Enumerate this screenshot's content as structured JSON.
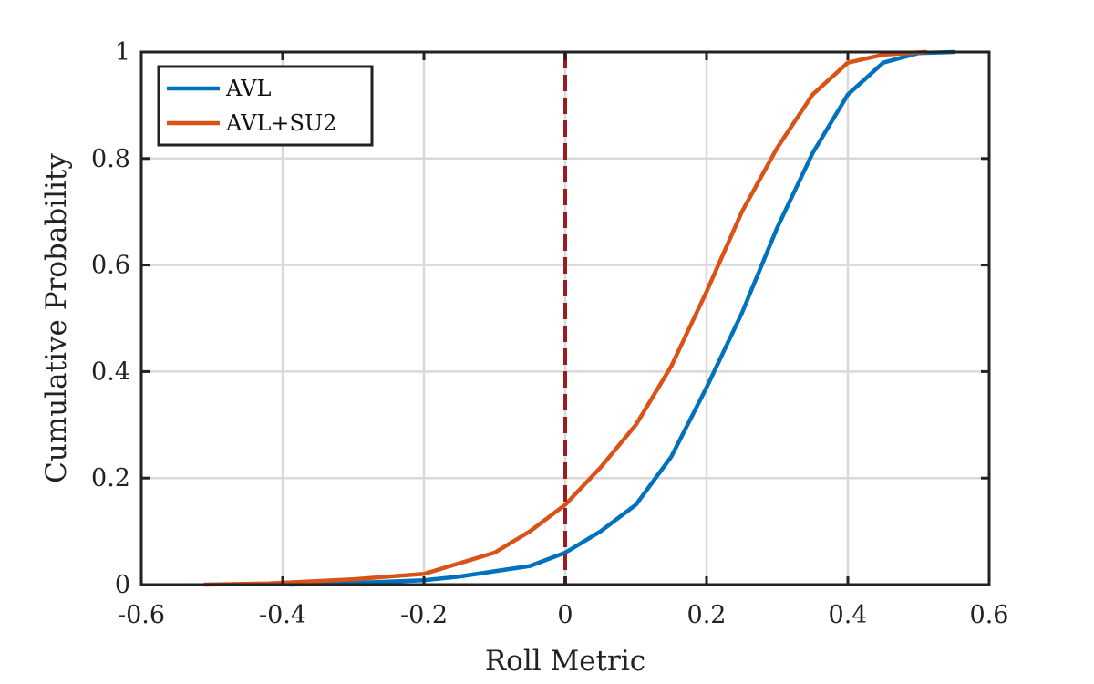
{
  "chart_data": {
    "type": "line",
    "title": "",
    "xlabel": "Roll Metric",
    "ylabel": "Cumulative Probability",
    "xlim": [
      -0.6,
      0.6
    ],
    "ylim": [
      0,
      1
    ],
    "xticks": [
      -0.6,
      -0.4,
      -0.2,
      0,
      0.2,
      0.4,
      0.6
    ],
    "xtick_labels": [
      "-0.6",
      "-0.4",
      "-0.2",
      "0",
      "0.2",
      "0.4",
      "0.6"
    ],
    "yticks": [
      0,
      0.2,
      0.4,
      0.6,
      0.8,
      1
    ],
    "ytick_labels": [
      "0",
      "0.2",
      "0.4",
      "0.6",
      "0.8",
      "1"
    ],
    "grid": true,
    "legend_position": "top-left",
    "reference_line": {
      "x": 0,
      "color": "#9b1c1c",
      "style": "dashed"
    },
    "series": [
      {
        "name": "AVL",
        "color": "#0072BD",
        "x": [
          -0.39,
          -0.3,
          -0.2,
          -0.15,
          -0.1,
          -0.05,
          0.0,
          0.05,
          0.1,
          0.15,
          0.2,
          0.25,
          0.3,
          0.35,
          0.4,
          0.45,
          0.5,
          0.55
        ],
        "y": [
          0.0,
          0.003,
          0.008,
          0.015,
          0.025,
          0.035,
          0.06,
          0.1,
          0.15,
          0.24,
          0.37,
          0.51,
          0.67,
          0.81,
          0.92,
          0.98,
          0.998,
          1.0
        ]
      },
      {
        "name": "AVL+SU2",
        "color": "#D95319",
        "x": [
          -0.51,
          -0.42,
          -0.3,
          -0.2,
          -0.15,
          -0.1,
          -0.05,
          0.0,
          0.05,
          0.1,
          0.15,
          0.2,
          0.25,
          0.3,
          0.35,
          0.4,
          0.45,
          0.51
        ],
        "y": [
          0.0,
          0.002,
          0.01,
          0.02,
          0.04,
          0.06,
          0.1,
          0.15,
          0.22,
          0.3,
          0.41,
          0.55,
          0.7,
          0.82,
          0.92,
          0.98,
          0.995,
          1.0
        ]
      }
    ]
  }
}
